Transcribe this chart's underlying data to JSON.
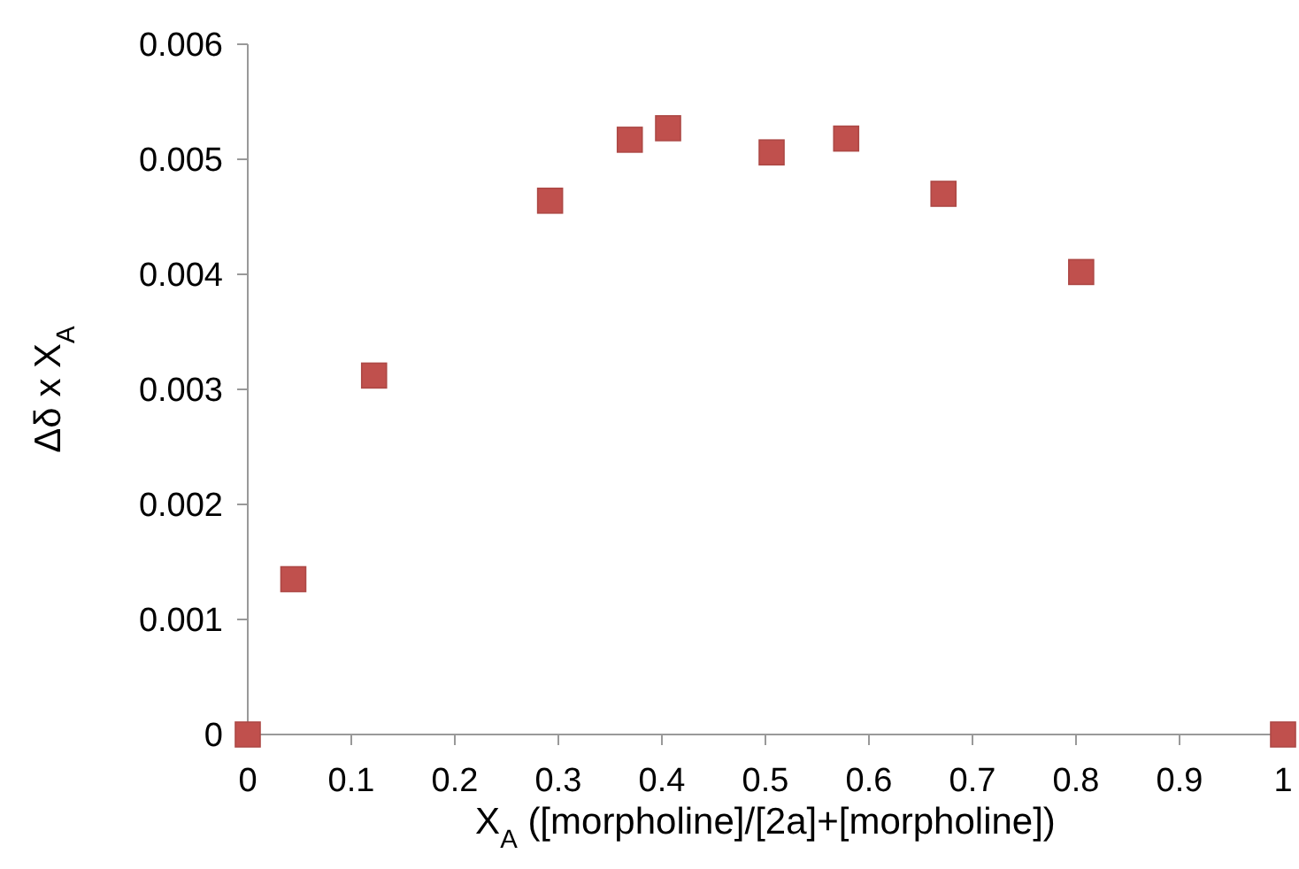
{
  "chart_data": {
    "type": "scatter",
    "xlabel": "X$_{A}$ ([morpholine]/[2a]+[morpholine])",
    "ylabel": "Δδ x X$_{A}$",
    "x": [
      0,
      0.044,
      0.122,
      0.292,
      0.369,
      0.406,
      0.506,
      0.578,
      0.672,
      0.805,
      1
    ],
    "series": [
      {
        "color": "#c0504d",
        "values": [
          0,
          0.00135,
          0.00312,
          0.00464,
          0.00517,
          0.00527,
          0.00506,
          0.00518,
          0.0047,
          0.00402,
          0
        ]
      }
    ],
    "marker": "square",
    "xlim": [
      0,
      1
    ],
    "xticks": [
      0,
      0.1,
      0.2,
      0.3,
      0.4,
      0.5,
      0.6,
      0.7,
      0.8,
      0.9,
      1
    ],
    "ylim": [
      0,
      0.006
    ],
    "yticks": [
      0,
      0.001,
      0.002,
      0.003,
      0.004,
      0.005,
      0.006
    ],
    "grid": false
  }
}
